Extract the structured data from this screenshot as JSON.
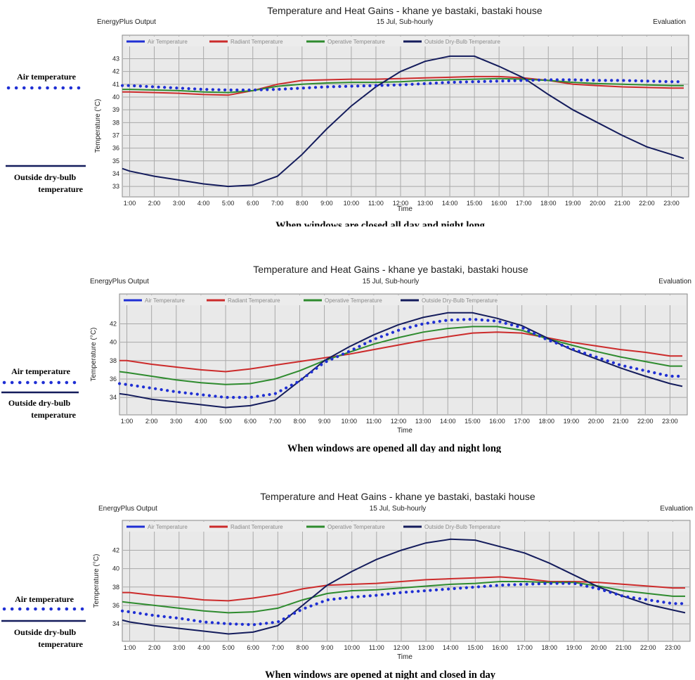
{
  "chart_data": [
    {
      "type": "line",
      "title": "Temperature and Heat Gains - khane ye bastaki, bastaki house",
      "subtitle": "15 Jul, Sub-hourly",
      "header_left": "EnergyPlus Output",
      "header_right": "Evaluation",
      "xlabel": "Time",
      "ylabel": "Temperature (°C)",
      "caption": "When windows are closed all day and night long",
      "side_air_label": "Air temperature",
      "side_outside_label": [
        "Outside dry-bulb",
        "temperature"
      ],
      "x": [
        "1:00",
        "2:00",
        "3:00",
        "4:00",
        "5:00",
        "6:00",
        "7:00",
        "8:00",
        "9:00",
        "10:00",
        "11:00",
        "12:00",
        "13:00",
        "14:00",
        "15:00",
        "16:00",
        "17:00",
        "18:00",
        "19:00",
        "20:00",
        "21:00",
        "22:00",
        "23:00"
      ],
      "x_range": [
        0.7,
        23.7
      ],
      "y_ticks": [
        33,
        34,
        35,
        36,
        37,
        38,
        39,
        40,
        41,
        42,
        43
      ],
      "ylim": [
        32.4,
        43.8
      ],
      "grid": true,
      "legend_position": "top",
      "series": [
        {
          "name": "Air Temperature",
          "color": "#1f2fd4",
          "style": "dotted",
          "x": [
            0.7,
            1,
            2,
            3,
            4,
            5,
            6,
            7,
            8,
            9,
            10,
            11,
            12,
            13,
            14,
            15,
            16,
            17,
            18,
            19,
            20,
            21,
            22,
            23,
            23.5
          ],
          "values": [
            40.9,
            40.9,
            40.8,
            40.7,
            40.6,
            40.55,
            40.55,
            40.6,
            40.7,
            40.8,
            40.85,
            40.9,
            40.95,
            41.05,
            41.15,
            41.2,
            41.25,
            41.3,
            41.35,
            41.35,
            41.3,
            41.3,
            41.25,
            41.2,
            41.2
          ]
        },
        {
          "name": "Radiant Temperature",
          "color": "#cc2b2b",
          "style": "solid",
          "x": [
            0.7,
            1,
            2,
            3,
            4,
            5,
            6,
            7,
            8,
            9,
            10,
            11,
            12,
            13,
            14,
            15,
            16,
            17,
            18,
            19,
            20,
            21,
            22,
            23,
            23.5
          ],
          "values": [
            40.4,
            40.4,
            40.35,
            40.3,
            40.2,
            40.15,
            40.5,
            41.0,
            41.3,
            41.35,
            41.4,
            41.4,
            41.45,
            41.5,
            41.55,
            41.6,
            41.6,
            41.5,
            41.3,
            41.0,
            40.9,
            40.8,
            40.75,
            40.7,
            40.7
          ]
        },
        {
          "name": "Operative Temperature",
          "color": "#2e8b2e",
          "style": "solid",
          "x": [
            0.7,
            1,
            2,
            3,
            4,
            5,
            6,
            7,
            8,
            9,
            10,
            11,
            12,
            13,
            14,
            15,
            16,
            17,
            18,
            19,
            20,
            21,
            22,
            23,
            23.5
          ],
          "values": [
            40.6,
            40.6,
            40.55,
            40.5,
            40.4,
            40.35,
            40.5,
            40.85,
            41.0,
            41.1,
            41.15,
            41.15,
            41.2,
            41.3,
            41.35,
            41.4,
            41.45,
            41.4,
            41.3,
            41.15,
            41.05,
            41.0,
            40.95,
            40.9,
            40.9
          ]
        },
        {
          "name": "Outside Dry-Bulb Temperature",
          "color": "#141c5c",
          "style": "solid",
          "x": [
            0.7,
            1,
            2,
            3,
            4,
            5,
            6,
            7,
            8,
            9,
            10,
            11,
            12,
            13,
            14,
            15,
            16,
            17,
            18,
            19,
            20,
            21,
            22,
            23,
            23.5
          ],
          "values": [
            34.4,
            34.2,
            33.8,
            33.5,
            33.2,
            33.0,
            33.1,
            33.8,
            35.5,
            37.5,
            39.3,
            40.8,
            42.0,
            42.8,
            43.2,
            43.2,
            42.4,
            41.5,
            40.2,
            39.0,
            38.0,
            37.0,
            36.1,
            35.5,
            35.2
          ]
        }
      ]
    },
    {
      "type": "line",
      "title": "Temperature and Heat Gains - khane ye bastaki, bastaki house",
      "subtitle": "15 Jul, Sub-hourly",
      "header_left": "EnergyPlus Output",
      "header_right": "Evaluation",
      "xlabel": "Time",
      "ylabel": "Temperature (°C)",
      "caption": "When windows are opened all day and night long",
      "side_air_label": "Air temperature",
      "side_outside_label": [
        "Outside dry-bulb",
        "temperature"
      ],
      "x": [
        "1:00",
        "2:00",
        "3:00",
        "4:00",
        "5:00",
        "6:00",
        "7:00",
        "8:00",
        "9:00",
        "10:00",
        "11:00",
        "12:00",
        "13:00",
        "14:00",
        "15:00",
        "16:00",
        "17:00",
        "18:00",
        "19:00",
        "20:00",
        "21:00",
        "22:00",
        "23:00"
      ],
      "x_range": [
        0.7,
        23.7
      ],
      "y_ticks": [
        34,
        36,
        38,
        40,
        42
      ],
      "ylim": [
        32.4,
        43.8
      ],
      "grid": true,
      "legend_position": "top",
      "series": [
        {
          "name": "Air Temperature",
          "color": "#1f2fd4",
          "style": "dotted",
          "x": [
            0.7,
            1,
            2,
            3,
            4,
            5,
            6,
            7,
            8,
            9,
            10,
            11,
            12,
            13,
            14,
            15,
            16,
            17,
            18,
            19,
            20,
            21,
            22,
            23,
            23.5
          ],
          "values": [
            35.5,
            35.4,
            35.0,
            34.6,
            34.3,
            34.0,
            34.0,
            34.4,
            35.8,
            37.8,
            39.0,
            40.3,
            41.3,
            42.0,
            42.4,
            42.5,
            42.3,
            41.6,
            40.3,
            39.3,
            38.4,
            37.5,
            36.9,
            36.3,
            36.3
          ]
        },
        {
          "name": "Radiant Temperature",
          "color": "#cc2b2b",
          "style": "solid",
          "x": [
            0.7,
            1,
            2,
            3,
            4,
            5,
            6,
            7,
            8,
            9,
            10,
            11,
            12,
            13,
            14,
            15,
            16,
            17,
            18,
            19,
            20,
            21,
            22,
            23,
            23.5
          ],
          "values": [
            38.0,
            38.0,
            37.6,
            37.3,
            37.0,
            36.8,
            37.1,
            37.5,
            37.9,
            38.3,
            38.7,
            39.2,
            39.7,
            40.2,
            40.6,
            41.0,
            41.1,
            41.0,
            40.5,
            40.0,
            39.6,
            39.2,
            38.9,
            38.5,
            38.5
          ]
        },
        {
          "name": "Operative Temperature",
          "color": "#2e8b2e",
          "style": "solid",
          "x": [
            0.7,
            1,
            2,
            3,
            4,
            5,
            6,
            7,
            8,
            9,
            10,
            11,
            12,
            13,
            14,
            15,
            16,
            17,
            18,
            19,
            20,
            21,
            22,
            23,
            23.5
          ],
          "values": [
            36.8,
            36.7,
            36.3,
            35.9,
            35.6,
            35.4,
            35.5,
            36.0,
            36.9,
            38.0,
            38.9,
            39.8,
            40.5,
            41.1,
            41.5,
            41.7,
            41.7,
            41.3,
            40.4,
            39.7,
            39.0,
            38.4,
            37.9,
            37.4,
            37.4
          ]
        },
        {
          "name": "Outside Dry-Bulb Temperature",
          "color": "#141c5c",
          "style": "solid",
          "x": [
            0.7,
            1,
            2,
            3,
            4,
            5,
            6,
            7,
            8,
            9,
            10,
            11,
            12,
            13,
            14,
            15,
            16,
            17,
            18,
            19,
            20,
            21,
            22,
            23,
            23.5
          ],
          "values": [
            34.4,
            34.3,
            33.8,
            33.5,
            33.2,
            32.9,
            33.1,
            33.7,
            35.8,
            38.0,
            39.5,
            40.8,
            41.9,
            42.7,
            43.2,
            43.2,
            42.6,
            41.8,
            40.5,
            39.2,
            38.2,
            37.2,
            36.3,
            35.5,
            35.2
          ]
        }
      ]
    },
    {
      "type": "line",
      "title": "Temperature and Heat Gains - khane ye bastaki, bastaki house",
      "subtitle": "15 Jul, Sub-hourly",
      "header_left": "EnergyPlus Output",
      "header_right": "Evaluation",
      "xlabel": "Time",
      "ylabel": "Temperature (°C)",
      "caption": "When windows are opened at night and closed in day",
      "side_air_label": "Air temperature",
      "side_outside_label": [
        "Outside dry-bulb",
        "temperature"
      ],
      "x": [
        "1:00",
        "2:00",
        "3:00",
        "4:00",
        "5:00",
        "6:00",
        "7:00",
        "8:00",
        "9:00",
        "10:00",
        "11:00",
        "12:00",
        "13:00",
        "14:00",
        "15:00",
        "16:00",
        "17:00",
        "18:00",
        "19:00",
        "20:00",
        "21:00",
        "22:00",
        "23:00"
      ],
      "x_range": [
        0.7,
        23.7
      ],
      "y_ticks": [
        34,
        36,
        38,
        40,
        42
      ],
      "ylim": [
        32.4,
        43.8
      ],
      "grid": true,
      "legend_position": "top",
      "series": [
        {
          "name": "Air Temperature",
          "color": "#1f2fd4",
          "style": "dotted",
          "x": [
            0.7,
            1,
            2,
            3,
            4,
            5,
            6,
            7,
            8,
            9,
            10,
            11,
            12,
            13,
            14,
            15,
            16,
            17,
            18,
            19,
            20,
            21,
            22,
            23,
            23.5
          ],
          "values": [
            35.4,
            35.3,
            34.9,
            34.6,
            34.2,
            34.0,
            33.9,
            34.2,
            35.6,
            36.6,
            36.9,
            37.1,
            37.4,
            37.6,
            37.8,
            38.0,
            38.2,
            38.3,
            38.4,
            38.4,
            37.8,
            37.0,
            36.6,
            36.2,
            36.2
          ]
        },
        {
          "name": "Radiant Temperature",
          "color": "#cc2b2b",
          "style": "solid",
          "x": [
            0.7,
            1,
            2,
            3,
            4,
            5,
            6,
            7,
            8,
            9,
            10,
            11,
            12,
            13,
            14,
            15,
            16,
            17,
            18,
            19,
            20,
            21,
            22,
            23,
            23.5
          ],
          "values": [
            37.4,
            37.4,
            37.1,
            36.9,
            36.6,
            36.5,
            36.8,
            37.2,
            37.8,
            38.2,
            38.3,
            38.4,
            38.6,
            38.8,
            38.9,
            39.0,
            39.1,
            38.9,
            38.6,
            38.6,
            38.5,
            38.3,
            38.1,
            37.9,
            37.9
          ]
        },
        {
          "name": "Operative Temperature",
          "color": "#2e8b2e",
          "style": "solid",
          "x": [
            0.7,
            1,
            2,
            3,
            4,
            5,
            6,
            7,
            8,
            9,
            10,
            11,
            12,
            13,
            14,
            15,
            16,
            17,
            18,
            19,
            20,
            21,
            22,
            23,
            23.5
          ],
          "values": [
            36.4,
            36.3,
            36.0,
            35.7,
            35.4,
            35.2,
            35.3,
            35.7,
            36.6,
            37.3,
            37.6,
            37.7,
            37.9,
            38.1,
            38.3,
            38.4,
            38.6,
            38.6,
            38.5,
            38.5,
            38.1,
            37.6,
            37.3,
            37.0,
            37.0
          ]
        },
        {
          "name": "Outside Dry-Bulb Temperature",
          "color": "#141c5c",
          "style": "solid",
          "x": [
            0.7,
            1,
            2,
            3,
            4,
            5,
            6,
            7,
            8,
            9,
            10,
            11,
            12,
            13,
            14,
            15,
            16,
            17,
            18,
            19,
            20,
            21,
            22,
            23,
            23.5
          ],
          "values": [
            34.4,
            34.2,
            33.8,
            33.5,
            33.2,
            32.9,
            33.1,
            33.8,
            36.0,
            38.2,
            39.7,
            41.0,
            42.0,
            42.8,
            43.2,
            43.1,
            42.4,
            41.7,
            40.6,
            39.3,
            38.0,
            37.0,
            36.1,
            35.5,
            35.2
          ]
        }
      ]
    }
  ]
}
